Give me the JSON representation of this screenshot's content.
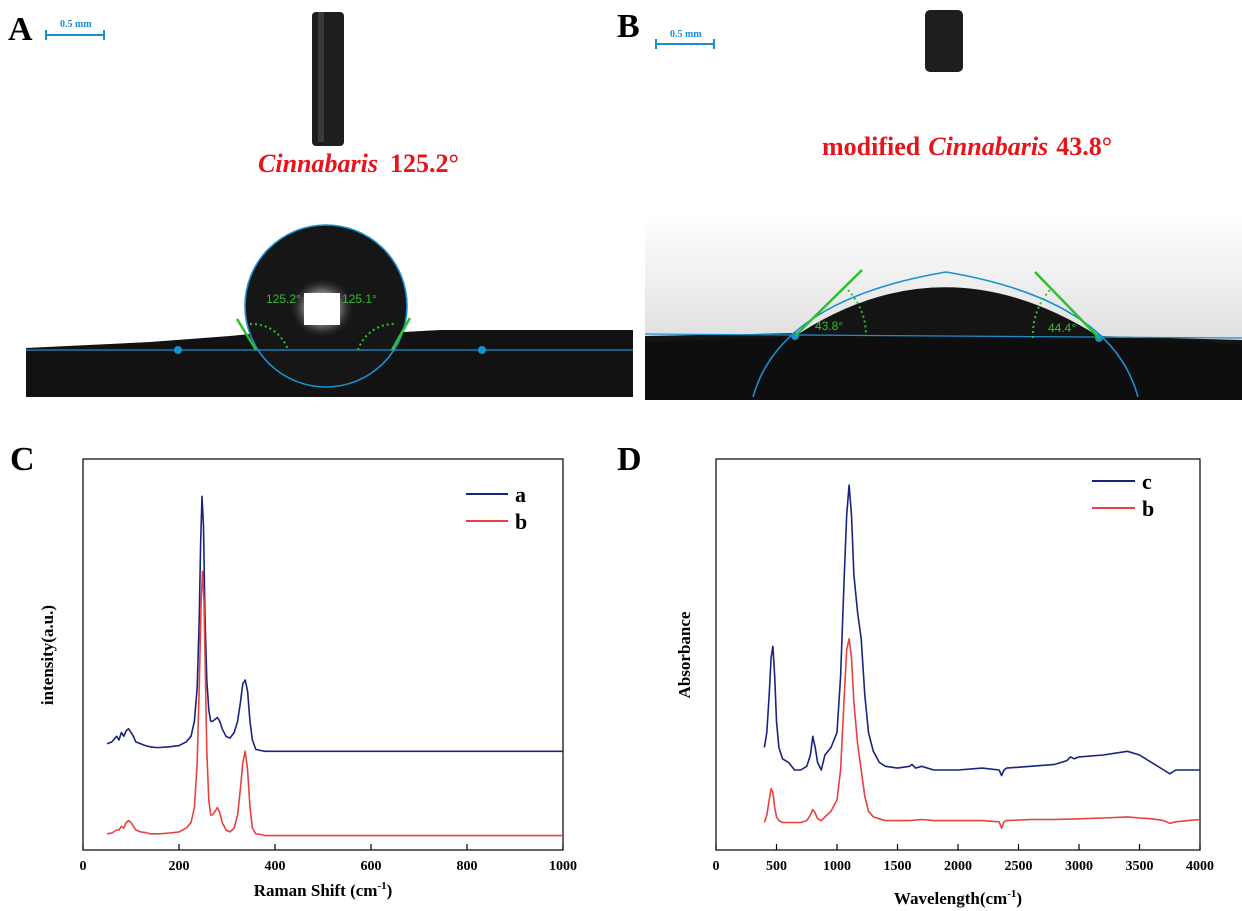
{
  "photos": [
    {
      "panel": "A",
      "scale_bar": "0.5 mm",
      "caption_italic": "Cinnabaris",
      "caption_rest": "125.2°",
      "contact_angle_left": "125.2°",
      "contact_angle_right": "125.1°",
      "caption_color": "#e8141c",
      "baseline_color": "#1a8fd0",
      "tangent_color": "#2ec02e"
    },
    {
      "panel": "B",
      "scale_bar": "0.5 mm",
      "caption_prefix": "modified",
      "caption_italic": "Cinnabaris",
      "caption_rest": "43.8°",
      "contact_angle_left": "43.8°",
      "contact_angle_right": "44.4°",
      "caption_color": "#e8141c",
      "baseline_color": "#1a8fd0",
      "tangent_color": "#2ec02e"
    }
  ],
  "chart_data": [
    {
      "panel": "C",
      "type": "line",
      "xlabel": "Raman Shift (cm",
      "xlabel_sup": "-1",
      "xlabel_end": ")",
      "ylabel": "intensity(a.u.)",
      "xlim": [
        0,
        1000
      ],
      "ylim": [
        0,
        1
      ],
      "xticks": [
        0,
        200,
        400,
        600,
        800,
        1000
      ],
      "xtick_labels": [
        "0",
        "200",
        "400",
        "600",
        "800",
        "1000"
      ],
      "legend_position": "top-right",
      "grid": false,
      "series": [
        {
          "name": "a",
          "color": "#1a237e",
          "x": [
            50,
            60,
            70,
            75,
            80,
            85,
            90,
            95,
            100,
            105,
            110,
            120,
            130,
            140,
            150,
            160,
            180,
            200,
            215,
            225,
            232,
            238,
            242,
            245,
            248,
            251,
            254,
            258,
            262,
            266,
            270,
            275,
            280,
            285,
            290,
            298,
            306,
            315,
            322,
            328,
            333,
            338,
            343,
            348,
            353,
            360,
            370,
            380,
            400,
            450,
            500,
            600,
            700,
            800,
            900,
            1000
          ],
          "y": [
            0.27,
            0.275,
            0.29,
            0.28,
            0.3,
            0.29,
            0.305,
            0.31,
            0.3,
            0.29,
            0.275,
            0.27,
            0.265,
            0.262,
            0.26,
            0.26,
            0.262,
            0.265,
            0.275,
            0.29,
            0.33,
            0.42,
            0.6,
            0.8,
            0.93,
            0.85,
            0.62,
            0.44,
            0.36,
            0.33,
            0.33,
            0.335,
            0.34,
            0.33,
            0.31,
            0.29,
            0.285,
            0.3,
            0.33,
            0.38,
            0.43,
            0.44,
            0.41,
            0.33,
            0.28,
            0.255,
            0.252,
            0.25,
            0.25,
            0.25,
            0.25,
            0.25,
            0.25,
            0.25,
            0.25,
            0.25
          ]
        },
        {
          "name": "b",
          "color": "#e8413e",
          "x": [
            50,
            60,
            70,
            75,
            80,
            85,
            90,
            95,
            100,
            105,
            110,
            120,
            130,
            140,
            150,
            160,
            180,
            200,
            215,
            225,
            232,
            238,
            242,
            246,
            249,
            252,
            255,
            258,
            262,
            266,
            270,
            275,
            280,
            285,
            290,
            298,
            306,
            315,
            322,
            328,
            333,
            338,
            343,
            348,
            353,
            360,
            370,
            380,
            400,
            450,
            500,
            600,
            700,
            800,
            900,
            1000
          ],
          "y": [
            0.03,
            0.032,
            0.04,
            0.04,
            0.05,
            0.045,
            0.06,
            0.065,
            0.06,
            0.05,
            0.04,
            0.035,
            0.033,
            0.03,
            0.03,
            0.03,
            0.032,
            0.035,
            0.045,
            0.06,
            0.1,
            0.22,
            0.42,
            0.64,
            0.73,
            0.65,
            0.45,
            0.25,
            0.12,
            0.08,
            0.08,
            0.09,
            0.1,
            0.085,
            0.06,
            0.04,
            0.035,
            0.045,
            0.08,
            0.15,
            0.22,
            0.25,
            0.2,
            0.1,
            0.045,
            0.03,
            0.028,
            0.025,
            0.025,
            0.025,
            0.025,
            0.025,
            0.025,
            0.025,
            0.025,
            0.025
          ]
        }
      ]
    },
    {
      "panel": "D",
      "type": "line",
      "xlabel": "Wavelength(cm",
      "xlabel_sup": "-1",
      "xlabel_end": ")",
      "ylabel": "Absorbance",
      "xlim": [
        0,
        4000
      ],
      "ylim": [
        0,
        1
      ],
      "xticks": [
        0,
        500,
        1000,
        1500,
        2000,
        2500,
        3000,
        3500,
        4000
      ],
      "xtick_labels": [
        "0",
        "500",
        "1000",
        "1500",
        "2000",
        "2500",
        "3000",
        "3500",
        "4000"
      ],
      "legend_position": "top-right",
      "grid": false,
      "series": [
        {
          "name": "c",
          "color": "#1a237e",
          "x": [
            400,
            420,
            440,
            455,
            470,
            485,
            500,
            520,
            550,
            600,
            650,
            700,
            750,
            780,
            800,
            820,
            840,
            870,
            900,
            950,
            1000,
            1030,
            1060,
            1080,
            1100,
            1120,
            1140,
            1170,
            1200,
            1230,
            1260,
            1300,
            1350,
            1400,
            1500,
            1600,
            1620,
            1650,
            1700,
            1800,
            2000,
            2200,
            2340,
            2360,
            2380,
            2400,
            2600,
            2800,
            2900,
            2930,
            2960,
            3000,
            3200,
            3400,
            3500,
            3600,
            3700,
            3750,
            3800,
            3900,
            4000
          ],
          "y": [
            0.26,
            0.3,
            0.4,
            0.5,
            0.53,
            0.45,
            0.33,
            0.26,
            0.23,
            0.22,
            0.2,
            0.2,
            0.21,
            0.24,
            0.29,
            0.26,
            0.22,
            0.2,
            0.24,
            0.26,
            0.3,
            0.45,
            0.72,
            0.88,
            0.96,
            0.88,
            0.72,
            0.62,
            0.55,
            0.4,
            0.3,
            0.25,
            0.22,
            0.21,
            0.205,
            0.21,
            0.215,
            0.205,
            0.21,
            0.2,
            0.2,
            0.205,
            0.2,
            0.185,
            0.2,
            0.205,
            0.21,
            0.215,
            0.225,
            0.235,
            0.23,
            0.235,
            0.24,
            0.25,
            0.24,
            0.22,
            0.2,
            0.19,
            0.2,
            0.2,
            0.2
          ]
        },
        {
          "name": "b",
          "color": "#e8413e",
          "x": [
            400,
            420,
            440,
            455,
            470,
            485,
            500,
            520,
            550,
            600,
            650,
            700,
            750,
            780,
            800,
            820,
            840,
            870,
            900,
            950,
            1000,
            1030,
            1060,
            1080,
            1100,
            1120,
            1140,
            1170,
            1200,
            1230,
            1260,
            1300,
            1350,
            1400,
            1500,
            1600,
            1700,
            1800,
            2000,
            2200,
            2340,
            2360,
            2380,
            2400,
            2600,
            2800,
            3000,
            3200,
            3400,
            3500,
            3600,
            3700,
            3750,
            3800,
            3900,
            4000
          ],
          "y": [
            0.06,
            0.08,
            0.12,
            0.15,
            0.14,
            0.1,
            0.075,
            0.065,
            0.06,
            0.06,
            0.06,
            0.06,
            0.065,
            0.08,
            0.095,
            0.085,
            0.07,
            0.065,
            0.075,
            0.09,
            0.12,
            0.2,
            0.4,
            0.52,
            0.55,
            0.5,
            0.38,
            0.27,
            0.2,
            0.13,
            0.09,
            0.075,
            0.07,
            0.065,
            0.065,
            0.065,
            0.068,
            0.065,
            0.065,
            0.065,
            0.062,
            0.045,
            0.062,
            0.065,
            0.068,
            0.068,
            0.07,
            0.072,
            0.075,
            0.072,
            0.07,
            0.065,
            0.058,
            0.062,
            0.065,
            0.068
          ]
        }
      ]
    }
  ]
}
